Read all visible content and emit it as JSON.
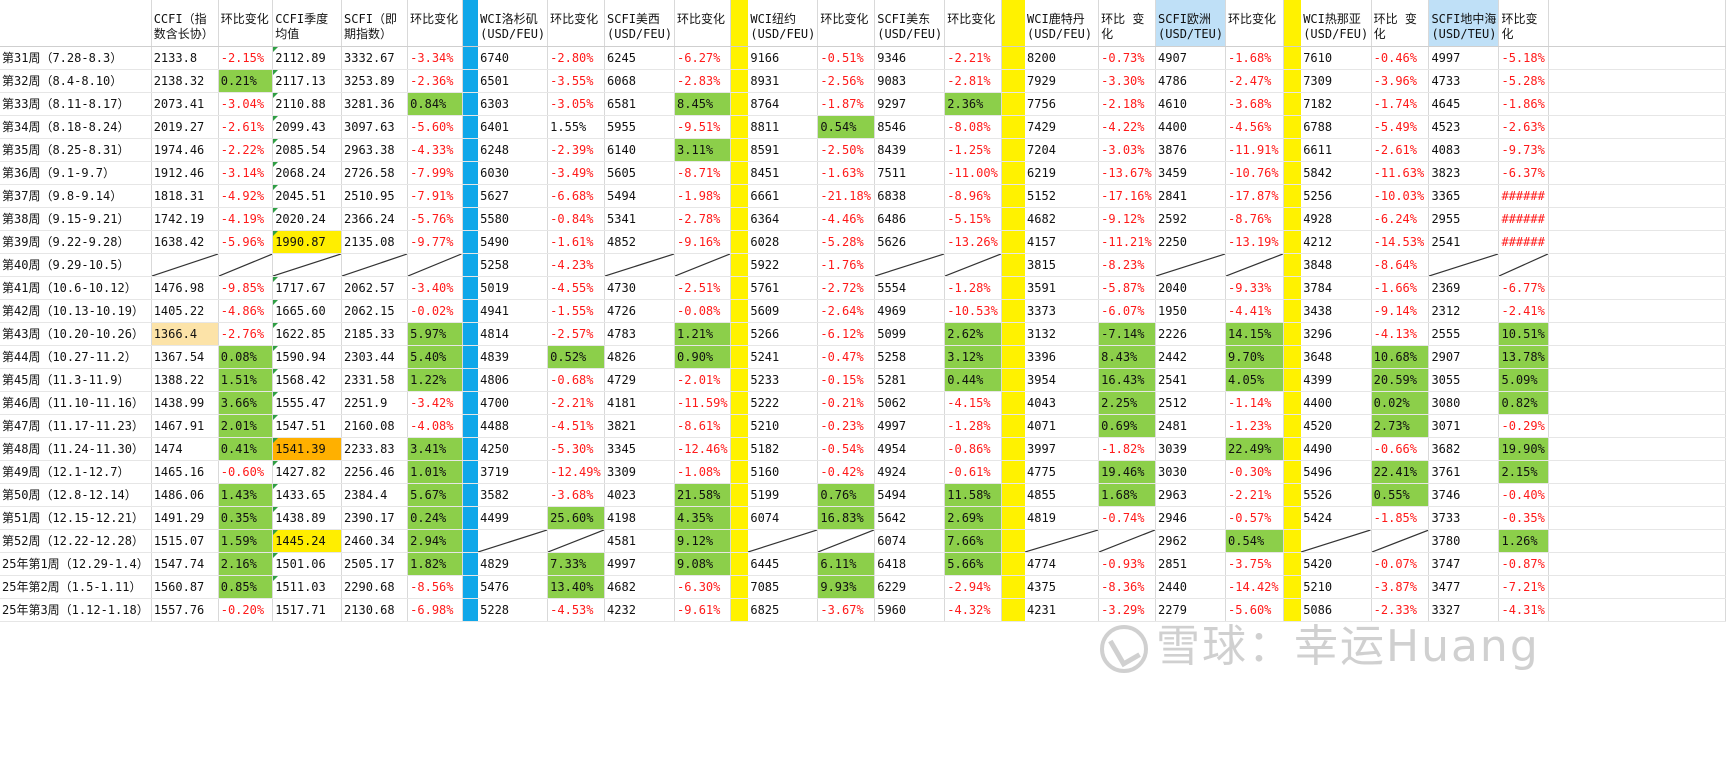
{
  "colors": {
    "blue_divider": "#0fa7e9",
    "yellow_divider": "#fff200",
    "positive_green": "#8ccf4a",
    "negative_red": "#ff1a1a",
    "highlight_yellow": "#ffee00",
    "highlight_orange": "#ffb000",
    "highlight_pale": "#fce3a8",
    "header_blue": "#bfe0f7"
  },
  "headers": [
    "",
    "CCFI（指数含长协）",
    "环比变化",
    "CCFI季度均值",
    "SCFI（即期指数）",
    "环比变化",
    "",
    "WCI洛杉矶(USD/FEU)",
    "环比变化",
    "SCFI美西(USD/FEU)",
    "环比变化",
    "",
    "WCI纽约(USD/FEU)",
    "环比变化",
    "SCFI美东(USD/FEU)",
    "环比变化",
    "",
    "WCI鹿特丹(USD/FEU)",
    "环比 变化",
    "SCFI欧洲(USD/TEU)",
    "环比变化",
    "",
    "WCI热那亚(USD/FEU)",
    "环比 变化",
    "SCFI地中海(USD/TEU)",
    "环比变化",
    ""
  ],
  "rows": [
    [
      "第31周（7.28-8.3）",
      "2133.8",
      "-2.15%",
      "2112.89",
      "3332.67",
      "-3.34%",
      "",
      "6740",
      "-2.80%",
      "6245",
      "-6.27%",
      "",
      "9166",
      "-0.51%",
      "9346",
      "-2.21%",
      "",
      "8200",
      "-0.73%",
      "4907",
      "-1.68%",
      "",
      "7610",
      "-0.46%",
      "4997",
      "-5.18%",
      ""
    ],
    [
      "第32周（8.4-8.10）",
      "2138.32",
      "0.21%",
      "2117.13",
      "3253.89",
      "-2.36%",
      "",
      "6501",
      "-3.55%",
      "6068",
      "-2.83%",
      "",
      "8931",
      "-2.56%",
      "9083",
      "-2.81%",
      "",
      "7929",
      "-3.30%",
      "4786",
      "-2.47%",
      "",
      "7309",
      "-3.96%",
      "4733",
      "-5.28%",
      ""
    ],
    [
      "第33周（8.11-8.17）",
      "2073.41",
      "-3.04%",
      "2110.88",
      "3281.36",
      "0.84%",
      "",
      "6303",
      "-3.05%",
      "6581",
      "8.45%",
      "",
      "8764",
      "-1.87%",
      "9297",
      "2.36%",
      "",
      "7756",
      "-2.18%",
      "4610",
      "-3.68%",
      "",
      "7182",
      "-1.74%",
      "4645",
      "-1.86%",
      ""
    ],
    [
      "第34周（8.18-8.24）",
      "2019.27",
      "-2.61%",
      "2099.43",
      "3097.63",
      "-5.60%",
      "",
      "6401",
      "1.55%",
      "5955",
      "-9.51%",
      "",
      "8811",
      "0.54%",
      "8546",
      "-8.08%",
      "",
      "7429",
      "-4.22%",
      "4400",
      "-4.56%",
      "",
      "6788",
      "-5.49%",
      "4523",
      "-2.63%",
      ""
    ],
    [
      "第35周（8.25-8.31）",
      "1974.46",
      "-2.22%",
      "2085.54",
      "2963.38",
      "-4.33%",
      "",
      "6248",
      "-2.39%",
      "6140",
      "3.11%",
      "",
      "8591",
      "-2.50%",
      "8439",
      "-1.25%",
      "",
      "7204",
      "-3.03%",
      "3876",
      "-11.91%",
      "",
      "6611",
      "-2.61%",
      "4083",
      "-9.73%",
      ""
    ],
    [
      "第36周（9.1-9.7）",
      "1912.46",
      "-3.14%",
      "2068.24",
      "2726.58",
      "-7.99%",
      "",
      "6030",
      "-3.49%",
      "5605",
      "-8.71%",
      "",
      "8451",
      "-1.63%",
      "7511",
      "-11.00%",
      "",
      "6219",
      "-13.67%",
      "3459",
      "-10.76%",
      "",
      "5842",
      "-11.63%",
      "3823",
      "-6.37%",
      ""
    ],
    [
      "第37周（9.8-9.14）",
      "1818.31",
      "-4.92%",
      "2045.51",
      "2510.95",
      "-7.91%",
      "",
      "5627",
      "-6.68%",
      "5494",
      "-1.98%",
      "",
      "6661",
      "-21.18%",
      "6838",
      "-8.96%",
      "",
      "5152",
      "-17.16%",
      "2841",
      "-17.87%",
      "",
      "5256",
      "-10.03%",
      "3365",
      "######",
      ""
    ],
    [
      "第38周（9.15-9.21）",
      "1742.19",
      "-4.19%",
      "2020.24",
      "2366.24",
      "-5.76%",
      "",
      "5580",
      "-0.84%",
      "5341",
      "-2.78%",
      "",
      "6364",
      "-4.46%",
      "6486",
      "-5.15%",
      "",
      "4682",
      "-9.12%",
      "2592",
      "-8.76%",
      "",
      "4928",
      "-6.24%",
      "2955",
      "######",
      ""
    ],
    [
      "第39周（9.22-9.28）",
      "1638.42",
      "-5.96%",
      "1990.87",
      "2135.08",
      "-9.77%",
      "",
      "5490",
      "-1.61%",
      "4852",
      "-9.16%",
      "",
      "6028",
      "-5.28%",
      "5626",
      "-13.26%",
      "",
      "4157",
      "-11.21%",
      "2250",
      "-13.19%",
      "",
      "4212",
      "-14.53%",
      "2541",
      "######",
      ""
    ],
    [
      "第40周（9.29-10.5）",
      "",
      "",
      "",
      "",
      "",
      "",
      "5258",
      "-4.23%",
      "",
      "",
      "",
      "5922",
      "-1.76%",
      "",
      "",
      "",
      "3815",
      "-8.23%",
      "",
      "",
      "",
      "3848",
      "-8.64%",
      "",
      "",
      ""
    ],
    [
      "第41周（10.6-10.12）",
      "1476.98",
      "-9.85%",
      "1717.67",
      "2062.57",
      "-3.40%",
      "",
      "5019",
      "-4.55%",
      "4730",
      "-2.51%",
      "",
      "5761",
      "-2.72%",
      "5554",
      "-1.28%",
      "",
      "3591",
      "-5.87%",
      "2040",
      "-9.33%",
      "",
      "3784",
      "-1.66%",
      "2369",
      "-6.77%",
      ""
    ],
    [
      "第42周（10.13-10.19）",
      "1405.22",
      "-4.86%",
      "1665.60",
      "2062.15",
      "-0.02%",
      "",
      "4941",
      "-1.55%",
      "4726",
      "-0.08%",
      "",
      "5609",
      "-2.64%",
      "4969",
      "-10.53%",
      "",
      "3373",
      "-6.07%",
      "1950",
      "-4.41%",
      "",
      "3438",
      "-9.14%",
      "2312",
      "-2.41%",
      ""
    ],
    [
      "第43周（10.20-10.26）",
      "1366.4",
      "-2.76%",
      "1622.85",
      "2185.33",
      "5.97%",
      "",
      "4814",
      "-2.57%",
      "4783",
      "1.21%",
      "",
      "5266",
      "-6.12%",
      "5099",
      "2.62%",
      "",
      "3132",
      "-7.14%",
      "2226",
      "14.15%",
      "",
      "3296",
      "-4.13%",
      "2555",
      "10.51%",
      ""
    ],
    [
      "第44周（10.27-11.2）",
      "1367.54",
      "0.08%",
      "1590.94",
      "2303.44",
      "5.40%",
      "",
      "4839",
      "0.52%",
      "4826",
      "0.90%",
      "",
      "5241",
      "-0.47%",
      "5258",
      "3.12%",
      "",
      "3396",
      "8.43%",
      "2442",
      "9.70%",
      "",
      "3648",
      "10.68%",
      "2907",
      "13.78%",
      ""
    ],
    [
      "第45周（11.3-11.9）",
      "1388.22",
      "1.51%",
      "1568.42",
      "2331.58",
      "1.22%",
      "",
      "4806",
      "-0.68%",
      "4729",
      "-2.01%",
      "",
      "5233",
      "-0.15%",
      "5281",
      "0.44%",
      "",
      "3954",
      "16.43%",
      "2541",
      "4.05%",
      "",
      "4399",
      "20.59%",
      "3055",
      "5.09%",
      ""
    ],
    [
      "第46周（11.10-11.16）",
      "1438.99",
      "3.66%",
      "1555.47",
      "2251.9",
      "-3.42%",
      "",
      "4700",
      "-2.21%",
      "4181",
      "-11.59%",
      "",
      "5222",
      "-0.21%",
      "5062",
      "-4.15%",
      "",
      "4043",
      "2.25%",
      "2512",
      "-1.14%",
      "",
      "4400",
      "0.02%",
      "3080",
      "0.82%",
      ""
    ],
    [
      "第47周（11.17-11.23）",
      "1467.91",
      "2.01%",
      "1547.51",
      "2160.08",
      "-4.08%",
      "",
      "4488",
      "-4.51%",
      "3821",
      "-8.61%",
      "",
      "5210",
      "-0.23%",
      "4997",
      "-1.28%",
      "",
      "4071",
      "0.69%",
      "2481",
      "-1.23%",
      "",
      "4520",
      "2.73%",
      "3071",
      "-0.29%",
      ""
    ],
    [
      "第48周（11.24-11.30）",
      "1474",
      "0.41%",
      "1541.39",
      "2233.83",
      "3.41%",
      "",
      "4250",
      "-5.30%",
      "3345",
      "-12.46%",
      "",
      "5182",
      "-0.54%",
      "4954",
      "-0.86%",
      "",
      "3997",
      "-1.82%",
      "3039",
      "22.49%",
      "",
      "4490",
      "-0.66%",
      "3682",
      "19.90%",
      ""
    ],
    [
      "第49周（12.1-12.7）",
      "1465.16",
      "-0.60%",
      "1427.82",
      "2256.46",
      "1.01%",
      "",
      "3719",
      "-12.49%",
      "3309",
      "-1.08%",
      "",
      "5160",
      "-0.42%",
      "4924",
      "-0.61%",
      "",
      "4775",
      "19.46%",
      "3030",
      "-0.30%",
      "",
      "5496",
      "22.41%",
      "3761",
      "2.15%",
      ""
    ],
    [
      "第50周（12.8-12.14）",
      "1486.06",
      "1.43%",
      "1433.65",
      "2384.4",
      "5.67%",
      "",
      "3582",
      "-3.68%",
      "4023",
      "21.58%",
      "",
      "5199",
      "0.76%",
      "5494",
      "11.58%",
      "",
      "4855",
      "1.68%",
      "2963",
      "-2.21%",
      "",
      "5526",
      "0.55%",
      "3746",
      "-0.40%",
      ""
    ],
    [
      "第51周（12.15-12.21）",
      "1491.29",
      "0.35%",
      "1438.89",
      "2390.17",
      "0.24%",
      "",
      "4499",
      "25.60%",
      "4198",
      "4.35%",
      "",
      "6074",
      "16.83%",
      "5642",
      "2.69%",
      "",
      "4819",
      "-0.74%",
      "2946",
      "-0.57%",
      "",
      "5424",
      "-1.85%",
      "3733",
      "-0.35%",
      ""
    ],
    [
      "第52周（12.22-12.28）",
      "1515.07",
      "1.59%",
      "1445.24",
      "2460.34",
      "2.94%",
      "",
      "",
      "",
      "4581",
      "9.12%",
      "",
      "",
      "",
      "6074",
      "7.66%",
      "",
      "",
      "",
      "2962",
      "0.54%",
      "",
      "",
      "",
      "3780",
      "1.26%",
      ""
    ],
    [
      "25年第1周（12.29-1.4）",
      "1547.74",
      "2.16%",
      "1501.06",
      "2505.17",
      "1.82%",
      "",
      "4829",
      "7.33%",
      "4997",
      "9.08%",
      "",
      "6445",
      "6.11%",
      "6418",
      "5.66%",
      "",
      "4774",
      "-0.93%",
      "2851",
      "-3.75%",
      "",
      "5420",
      "-0.07%",
      "3747",
      "-0.87%",
      ""
    ],
    [
      "25年第2周（1.5-1.11）",
      "1560.87",
      "0.85%",
      "1511.03",
      "2290.68",
      "-8.56%",
      "",
      "5476",
      "13.40%",
      "4682",
      "-6.30%",
      "",
      "7085",
      "9.93%",
      "6229",
      "-2.94%",
      "",
      "4375",
      "-8.36%",
      "2440",
      "-14.42%",
      "",
      "5210",
      "-3.87%",
      "3477",
      "-7.21%",
      ""
    ],
    [
      "25年第3周（1.12-1.18）",
      "1557.76",
      "-0.20%",
      "1517.71",
      "2130.68",
      "-6.98%",
      "",
      "5228",
      "-4.53%",
      "4232",
      "-9.61%",
      "",
      "6825",
      "-3.67%",
      "5960",
      "-4.32%",
      "",
      "4231",
      "-3.29%",
      "2279",
      "-5.60%",
      "",
      "5086",
      "-2.33%",
      "3327",
      "-4.31%",
      ""
    ]
  ],
  "watermark": "雪球：幸运Huang"
}
